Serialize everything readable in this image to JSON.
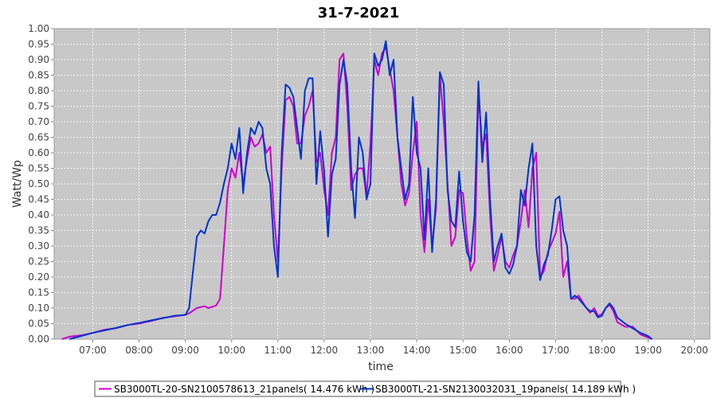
{
  "chart_data": {
    "type": "line",
    "title": "31-7-2021",
    "xlabel": "time",
    "ylabel": "Watt/Wp",
    "xlim": [
      "06:10",
      "20:20"
    ],
    "ylim": [
      0,
      1.0
    ],
    "x_ticks": [
      "07:00",
      "08:00",
      "09:00",
      "10:00",
      "11:00",
      "12:00",
      "13:00",
      "14:00",
      "15:00",
      "16:00",
      "17:00",
      "18:00",
      "19:00",
      "20:00"
    ],
    "y_ticks": [
      "0.00",
      "0.05",
      "0.10",
      "0.15",
      "0.20",
      "0.25",
      "0.30",
      "0.35",
      "0.40",
      "0.45",
      "0.50",
      "0.55",
      "0.60",
      "0.65",
      "0.70",
      "0.75",
      "0.80",
      "0.85",
      "0.90",
      "0.95",
      "1.00"
    ],
    "grid": true,
    "legend_position": "bottom",
    "series": [
      {
        "name": "SB3000TL-20-SN2100578613_21panels( 14.476 kWh )",
        "color": "#cc00cc",
        "points": [
          [
            "06:20",
            0.0
          ],
          [
            "06:30",
            0.008
          ],
          [
            "06:45",
            0.012
          ],
          [
            "07:00",
            0.02
          ],
          [
            "07:15",
            0.03
          ],
          [
            "07:30",
            0.035
          ],
          [
            "07:45",
            0.045
          ],
          [
            "08:00",
            0.05
          ],
          [
            "08:15",
            0.058
          ],
          [
            "08:30",
            0.068
          ],
          [
            "08:45",
            0.073
          ],
          [
            "09:00",
            0.078
          ],
          [
            "09:05",
            0.083
          ],
          [
            "09:15",
            0.1
          ],
          [
            "09:25",
            0.106
          ],
          [
            "09:30",
            0.1
          ],
          [
            "09:40",
            0.108
          ],
          [
            "09:45",
            0.13
          ],
          [
            "09:50",
            0.3
          ],
          [
            "09:55",
            0.48
          ],
          [
            "10:00",
            0.55
          ],
          [
            "10:05",
            0.52
          ],
          [
            "10:10",
            0.6
          ],
          [
            "10:15",
            0.5
          ],
          [
            "10:20",
            0.58
          ],
          [
            "10:25",
            0.65
          ],
          [
            "10:30",
            0.62
          ],
          [
            "10:35",
            0.63
          ],
          [
            "10:40",
            0.66
          ],
          [
            "10:45",
            0.6
          ],
          [
            "10:50",
            0.62
          ],
          [
            "10:55",
            0.4
          ],
          [
            "11:00",
            0.25
          ],
          [
            "11:05",
            0.55
          ],
          [
            "11:10",
            0.77
          ],
          [
            "11:15",
            0.78
          ],
          [
            "11:20",
            0.75
          ],
          [
            "11:25",
            0.63
          ],
          [
            "11:30",
            0.63
          ],
          [
            "11:35",
            0.72
          ],
          [
            "11:40",
            0.75
          ],
          [
            "11:45",
            0.8
          ],
          [
            "11:50",
            0.57
          ],
          [
            "11:55",
            0.6
          ],
          [
            "12:00",
            0.48
          ],
          [
            "12:05",
            0.4
          ],
          [
            "12:10",
            0.6
          ],
          [
            "12:15",
            0.65
          ],
          [
            "12:20",
            0.9
          ],
          [
            "12:25",
            0.92
          ],
          [
            "12:30",
            0.75
          ],
          [
            "12:35",
            0.48
          ],
          [
            "12:40",
            0.53
          ],
          [
            "12:45",
            0.55
          ],
          [
            "12:50",
            0.55
          ],
          [
            "12:55",
            0.46
          ],
          [
            "13:00",
            0.63
          ],
          [
            "13:05",
            0.9
          ],
          [
            "13:10",
            0.85
          ],
          [
            "13:15",
            0.92
          ],
          [
            "13:20",
            0.94
          ],
          [
            "13:25",
            0.87
          ],
          [
            "13:30",
            0.8
          ],
          [
            "13:35",
            0.65
          ],
          [
            "13:40",
            0.5
          ],
          [
            "13:45",
            0.43
          ],
          [
            "13:50",
            0.47
          ],
          [
            "13:55",
            0.6
          ],
          [
            "14:00",
            0.7
          ],
          [
            "14:05",
            0.4
          ],
          [
            "14:10",
            0.28
          ],
          [
            "14:15",
            0.45
          ],
          [
            "14:20",
            0.3
          ],
          [
            "14:25",
            0.42
          ],
          [
            "14:30",
            0.85
          ],
          [
            "14:35",
            0.7
          ],
          [
            "14:40",
            0.5
          ],
          [
            "14:45",
            0.3
          ],
          [
            "14:50",
            0.33
          ],
          [
            "14:55",
            0.48
          ],
          [
            "15:00",
            0.47
          ],
          [
            "15:05",
            0.33
          ],
          [
            "15:10",
            0.22
          ],
          [
            "15:15",
            0.25
          ],
          [
            "15:20",
            0.79
          ],
          [
            "15:25",
            0.62
          ],
          [
            "15:30",
            0.66
          ],
          [
            "15:35",
            0.4
          ],
          [
            "15:40",
            0.22
          ],
          [
            "15:45",
            0.27
          ],
          [
            "15:50",
            0.33
          ],
          [
            "15:55",
            0.25
          ],
          [
            "16:00",
            0.23
          ],
          [
            "16:05",
            0.27
          ],
          [
            "16:10",
            0.3
          ],
          [
            "16:15",
            0.38
          ],
          [
            "16:20",
            0.48
          ],
          [
            "16:25",
            0.36
          ],
          [
            "16:30",
            0.55
          ],
          [
            "16:35",
            0.6
          ],
          [
            "16:40",
            0.2
          ],
          [
            "16:45",
            0.22
          ],
          [
            "16:50",
            0.28
          ],
          [
            "16:55",
            0.31
          ],
          [
            "17:00",
            0.34
          ],
          [
            "17:05",
            0.41
          ],
          [
            "17:10",
            0.2
          ],
          [
            "17:15",
            0.25
          ],
          [
            "17:20",
            0.13
          ],
          [
            "17:25",
            0.13
          ],
          [
            "17:30",
            0.14
          ],
          [
            "17:35",
            0.12
          ],
          [
            "17:40",
            0.1
          ],
          [
            "17:45",
            0.085
          ],
          [
            "17:50",
            0.1
          ],
          [
            "17:55",
            0.075
          ],
          [
            "18:00",
            0.08
          ],
          [
            "18:05",
            0.1
          ],
          [
            "18:10",
            0.11
          ],
          [
            "18:15",
            0.09
          ],
          [
            "18:20",
            0.055
          ],
          [
            "18:30",
            0.04
          ],
          [
            "18:40",
            0.04
          ],
          [
            "18:50",
            0.015
          ],
          [
            "19:00",
            0.005
          ],
          [
            "19:05",
            0.0
          ]
        ]
      },
      {
        "name": "SB3000TL-21-SN2130032031_19panels( 14.189 kWh )",
        "color": "#0033cc",
        "points": [
          [
            "06:30",
            0.0
          ],
          [
            "06:45",
            0.01
          ],
          [
            "07:00",
            0.02
          ],
          [
            "07:15",
            0.028
          ],
          [
            "07:30",
            0.036
          ],
          [
            "07:45",
            0.045
          ],
          [
            "08:00",
            0.052
          ],
          [
            "08:15",
            0.06
          ],
          [
            "08:30",
            0.067
          ],
          [
            "08:45",
            0.075
          ],
          [
            "09:00",
            0.078
          ],
          [
            "09:05",
            0.1
          ],
          [
            "09:10",
            0.22
          ],
          [
            "09:15",
            0.33
          ],
          [
            "09:20",
            0.35
          ],
          [
            "09:25",
            0.34
          ],
          [
            "09:30",
            0.38
          ],
          [
            "09:35",
            0.4
          ],
          [
            "09:40",
            0.4
          ],
          [
            "09:45",
            0.44
          ],
          [
            "09:50",
            0.5
          ],
          [
            "09:55",
            0.55
          ],
          [
            "10:00",
            0.63
          ],
          [
            "10:05",
            0.58
          ],
          [
            "10:10",
            0.68
          ],
          [
            "10:15",
            0.47
          ],
          [
            "10:20",
            0.6
          ],
          [
            "10:25",
            0.68
          ],
          [
            "10:30",
            0.66
          ],
          [
            "10:35",
            0.7
          ],
          [
            "10:40",
            0.68
          ],
          [
            "10:45",
            0.55
          ],
          [
            "10:50",
            0.5
          ],
          [
            "10:55",
            0.3
          ],
          [
            "11:00",
            0.2
          ],
          [
            "11:05",
            0.6
          ],
          [
            "11:10",
            0.82
          ],
          [
            "11:15",
            0.81
          ],
          [
            "11:20",
            0.78
          ],
          [
            "11:25",
            0.68
          ],
          [
            "11:30",
            0.58
          ],
          [
            "11:35",
            0.8
          ],
          [
            "11:40",
            0.84
          ],
          [
            "11:45",
            0.84
          ],
          [
            "11:50",
            0.5
          ],
          [
            "11:55",
            0.67
          ],
          [
            "12:00",
            0.54
          ],
          [
            "12:05",
            0.33
          ],
          [
            "12:10",
            0.53
          ],
          [
            "12:15",
            0.58
          ],
          [
            "12:20",
            0.82
          ],
          [
            "12:25",
            0.9
          ],
          [
            "12:30",
            0.82
          ],
          [
            "12:35",
            0.55
          ],
          [
            "12:40",
            0.39
          ],
          [
            "12:45",
            0.65
          ],
          [
            "12:50",
            0.6
          ],
          [
            "12:55",
            0.45
          ],
          [
            "13:00",
            0.5
          ],
          [
            "13:05",
            0.92
          ],
          [
            "13:10",
            0.88
          ],
          [
            "13:15",
            0.9
          ],
          [
            "13:20",
            0.96
          ],
          [
            "13:25",
            0.85
          ],
          [
            "13:30",
            0.9
          ],
          [
            "13:35",
            0.65
          ],
          [
            "13:40",
            0.55
          ],
          [
            "13:45",
            0.45
          ],
          [
            "13:50",
            0.5
          ],
          [
            "13:55",
            0.78
          ],
          [
            "14:00",
            0.6
          ],
          [
            "14:05",
            0.55
          ],
          [
            "14:10",
            0.32
          ],
          [
            "14:15",
            0.55
          ],
          [
            "14:20",
            0.28
          ],
          [
            "14:25",
            0.45
          ],
          [
            "14:30",
            0.86
          ],
          [
            "14:35",
            0.82
          ],
          [
            "14:40",
            0.48
          ],
          [
            "14:45",
            0.38
          ],
          [
            "14:50",
            0.36
          ],
          [
            "14:55",
            0.54
          ],
          [
            "15:00",
            0.38
          ],
          [
            "15:05",
            0.28
          ],
          [
            "15:10",
            0.25
          ],
          [
            "15:15",
            0.4
          ],
          [
            "15:20",
            0.83
          ],
          [
            "15:25",
            0.57
          ],
          [
            "15:30",
            0.73
          ],
          [
            "15:35",
            0.45
          ],
          [
            "15:40",
            0.25
          ],
          [
            "15:45",
            0.3
          ],
          [
            "15:50",
            0.34
          ],
          [
            "15:55",
            0.23
          ],
          [
            "16:00",
            0.21
          ],
          [
            "16:05",
            0.24
          ],
          [
            "16:10",
            0.3
          ],
          [
            "16:15",
            0.48
          ],
          [
            "16:20",
            0.43
          ],
          [
            "16:25",
            0.55
          ],
          [
            "16:30",
            0.63
          ],
          [
            "16:35",
            0.3
          ],
          [
            "16:40",
            0.19
          ],
          [
            "16:45",
            0.24
          ],
          [
            "16:50",
            0.27
          ],
          [
            "16:55",
            0.35
          ],
          [
            "17:00",
            0.45
          ],
          [
            "17:05",
            0.46
          ],
          [
            "17:10",
            0.35
          ],
          [
            "17:15",
            0.3
          ],
          [
            "17:20",
            0.13
          ],
          [
            "17:25",
            0.14
          ],
          [
            "17:30",
            0.13
          ],
          [
            "17:35",
            0.115
          ],
          [
            "17:40",
            0.1
          ],
          [
            "17:45",
            0.09
          ],
          [
            "17:50",
            0.09
          ],
          [
            "17:55",
            0.07
          ],
          [
            "18:00",
            0.075
          ],
          [
            "18:05",
            0.1
          ],
          [
            "18:10",
            0.115
          ],
          [
            "18:15",
            0.1
          ],
          [
            "18:20",
            0.07
          ],
          [
            "18:30",
            0.05
          ],
          [
            "18:40",
            0.035
          ],
          [
            "18:50",
            0.02
          ],
          [
            "19:00",
            0.01
          ],
          [
            "19:05",
            0.0
          ]
        ]
      }
    ]
  }
}
